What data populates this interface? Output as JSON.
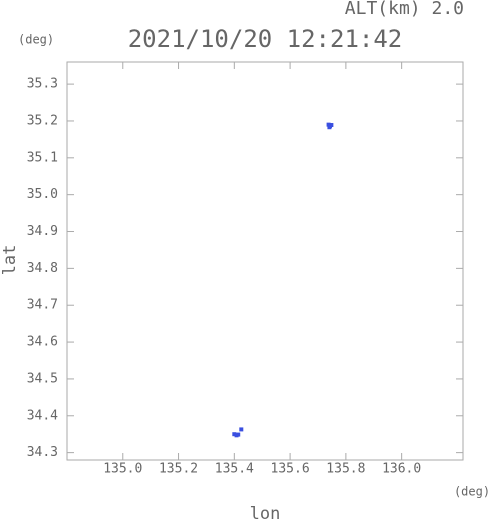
{
  "chart_data": {
    "type": "scatter",
    "title": "2021/10/20 12:21:42",
    "annotation": "ALT(km) 2.0",
    "y_unit": "(deg)",
    "x_unit": "(deg)",
    "x_label": "lon",
    "y_label": "lat",
    "xlim": [
      134.8,
      136.22
    ],
    "ylim": [
      34.28,
      35.36
    ],
    "xticks": [
      {
        "value": 135.0,
        "label": "135.0"
      },
      135.2,
      135.4,
      135.6,
      135.8,
      {
        "value": 136.0,
        "label": "136.0"
      }
    ],
    "yticks": [
      34.3,
      34.4,
      34.5,
      34.6,
      34.7,
      34.8,
      34.9,
      {
        "value": 35.0,
        "label": "35.0"
      },
      35.1,
      35.2,
      35.3
    ],
    "series": [
      {
        "color": "#3a4fe0",
        "x": [
          135.738,
          135.743,
          135.748,
          135.741,
          135.4,
          135.408,
          135.414,
          135.425
        ],
        "y": [
          35.19,
          35.186,
          35.189,
          35.183,
          34.35,
          34.347,
          34.349,
          34.363
        ]
      }
    ]
  }
}
